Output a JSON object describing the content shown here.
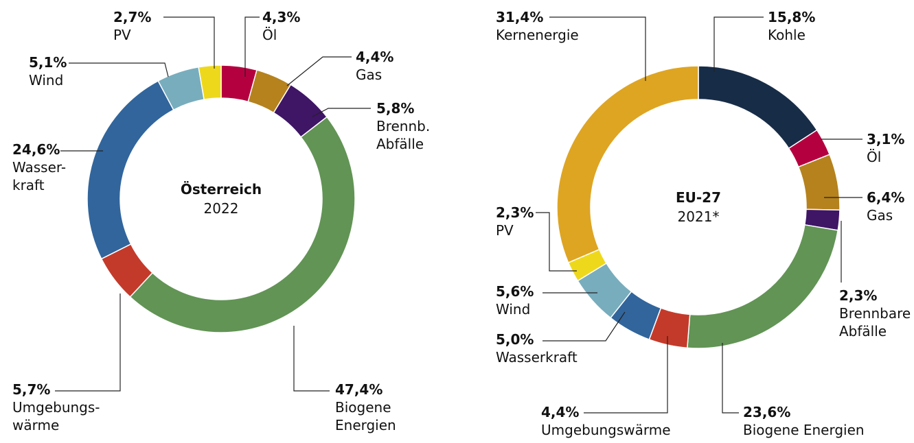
{
  "chart_data": [
    {
      "type": "pie",
      "title": "Österreich",
      "subtitle": "2022",
      "categories": [
        "Öl",
        "Gas",
        "Brennb.\nAbfälle",
        "Biogene\nEnergien",
        "Umgebungs-\nwärme",
        "Wasser-\nkraft",
        "Wind",
        "PV"
      ],
      "values": [
        4.3,
        4.4,
        5.8,
        47.4,
        5.7,
        24.6,
        5.1,
        2.7
      ],
      "value_labels": [
        "4,3%",
        "4,4%",
        "5,8%",
        "47,4%",
        "5,7%",
        "24,6%",
        "5,1%",
        "2,7%"
      ],
      "colors": [
        "#b5003f",
        "#b5821e",
        "#3f1566",
        "#629455",
        "#c43a2a",
        "#31659c",
        "#78adbd",
        "#eed81c"
      ]
    },
    {
      "type": "pie",
      "title": "EU-27",
      "subtitle": "2021*",
      "categories": [
        "Kohle",
        "Öl",
        "Gas",
        "Brennbare\nAbfälle",
        "Biogene Energien",
        "Umgebungswärme",
        "Wasserkraft",
        "Wind",
        "PV",
        "Kernenergie"
      ],
      "values": [
        15.8,
        3.1,
        6.4,
        2.3,
        23.6,
        4.4,
        5.0,
        5.6,
        2.3,
        31.4
      ],
      "value_labels": [
        "15,8%",
        "3,1%",
        "6,4%",
        "2,3%",
        "23,6%",
        "4,4%",
        "5,0%",
        "5,6%",
        "2,3%",
        "31,4%"
      ],
      "colors": [
        "#172c47",
        "#b5003f",
        "#b5821e",
        "#3f1566",
        "#629455",
        "#c43a2a",
        "#31659c",
        "#78adbd",
        "#eed81c",
        "#dea523"
      ]
    }
  ]
}
